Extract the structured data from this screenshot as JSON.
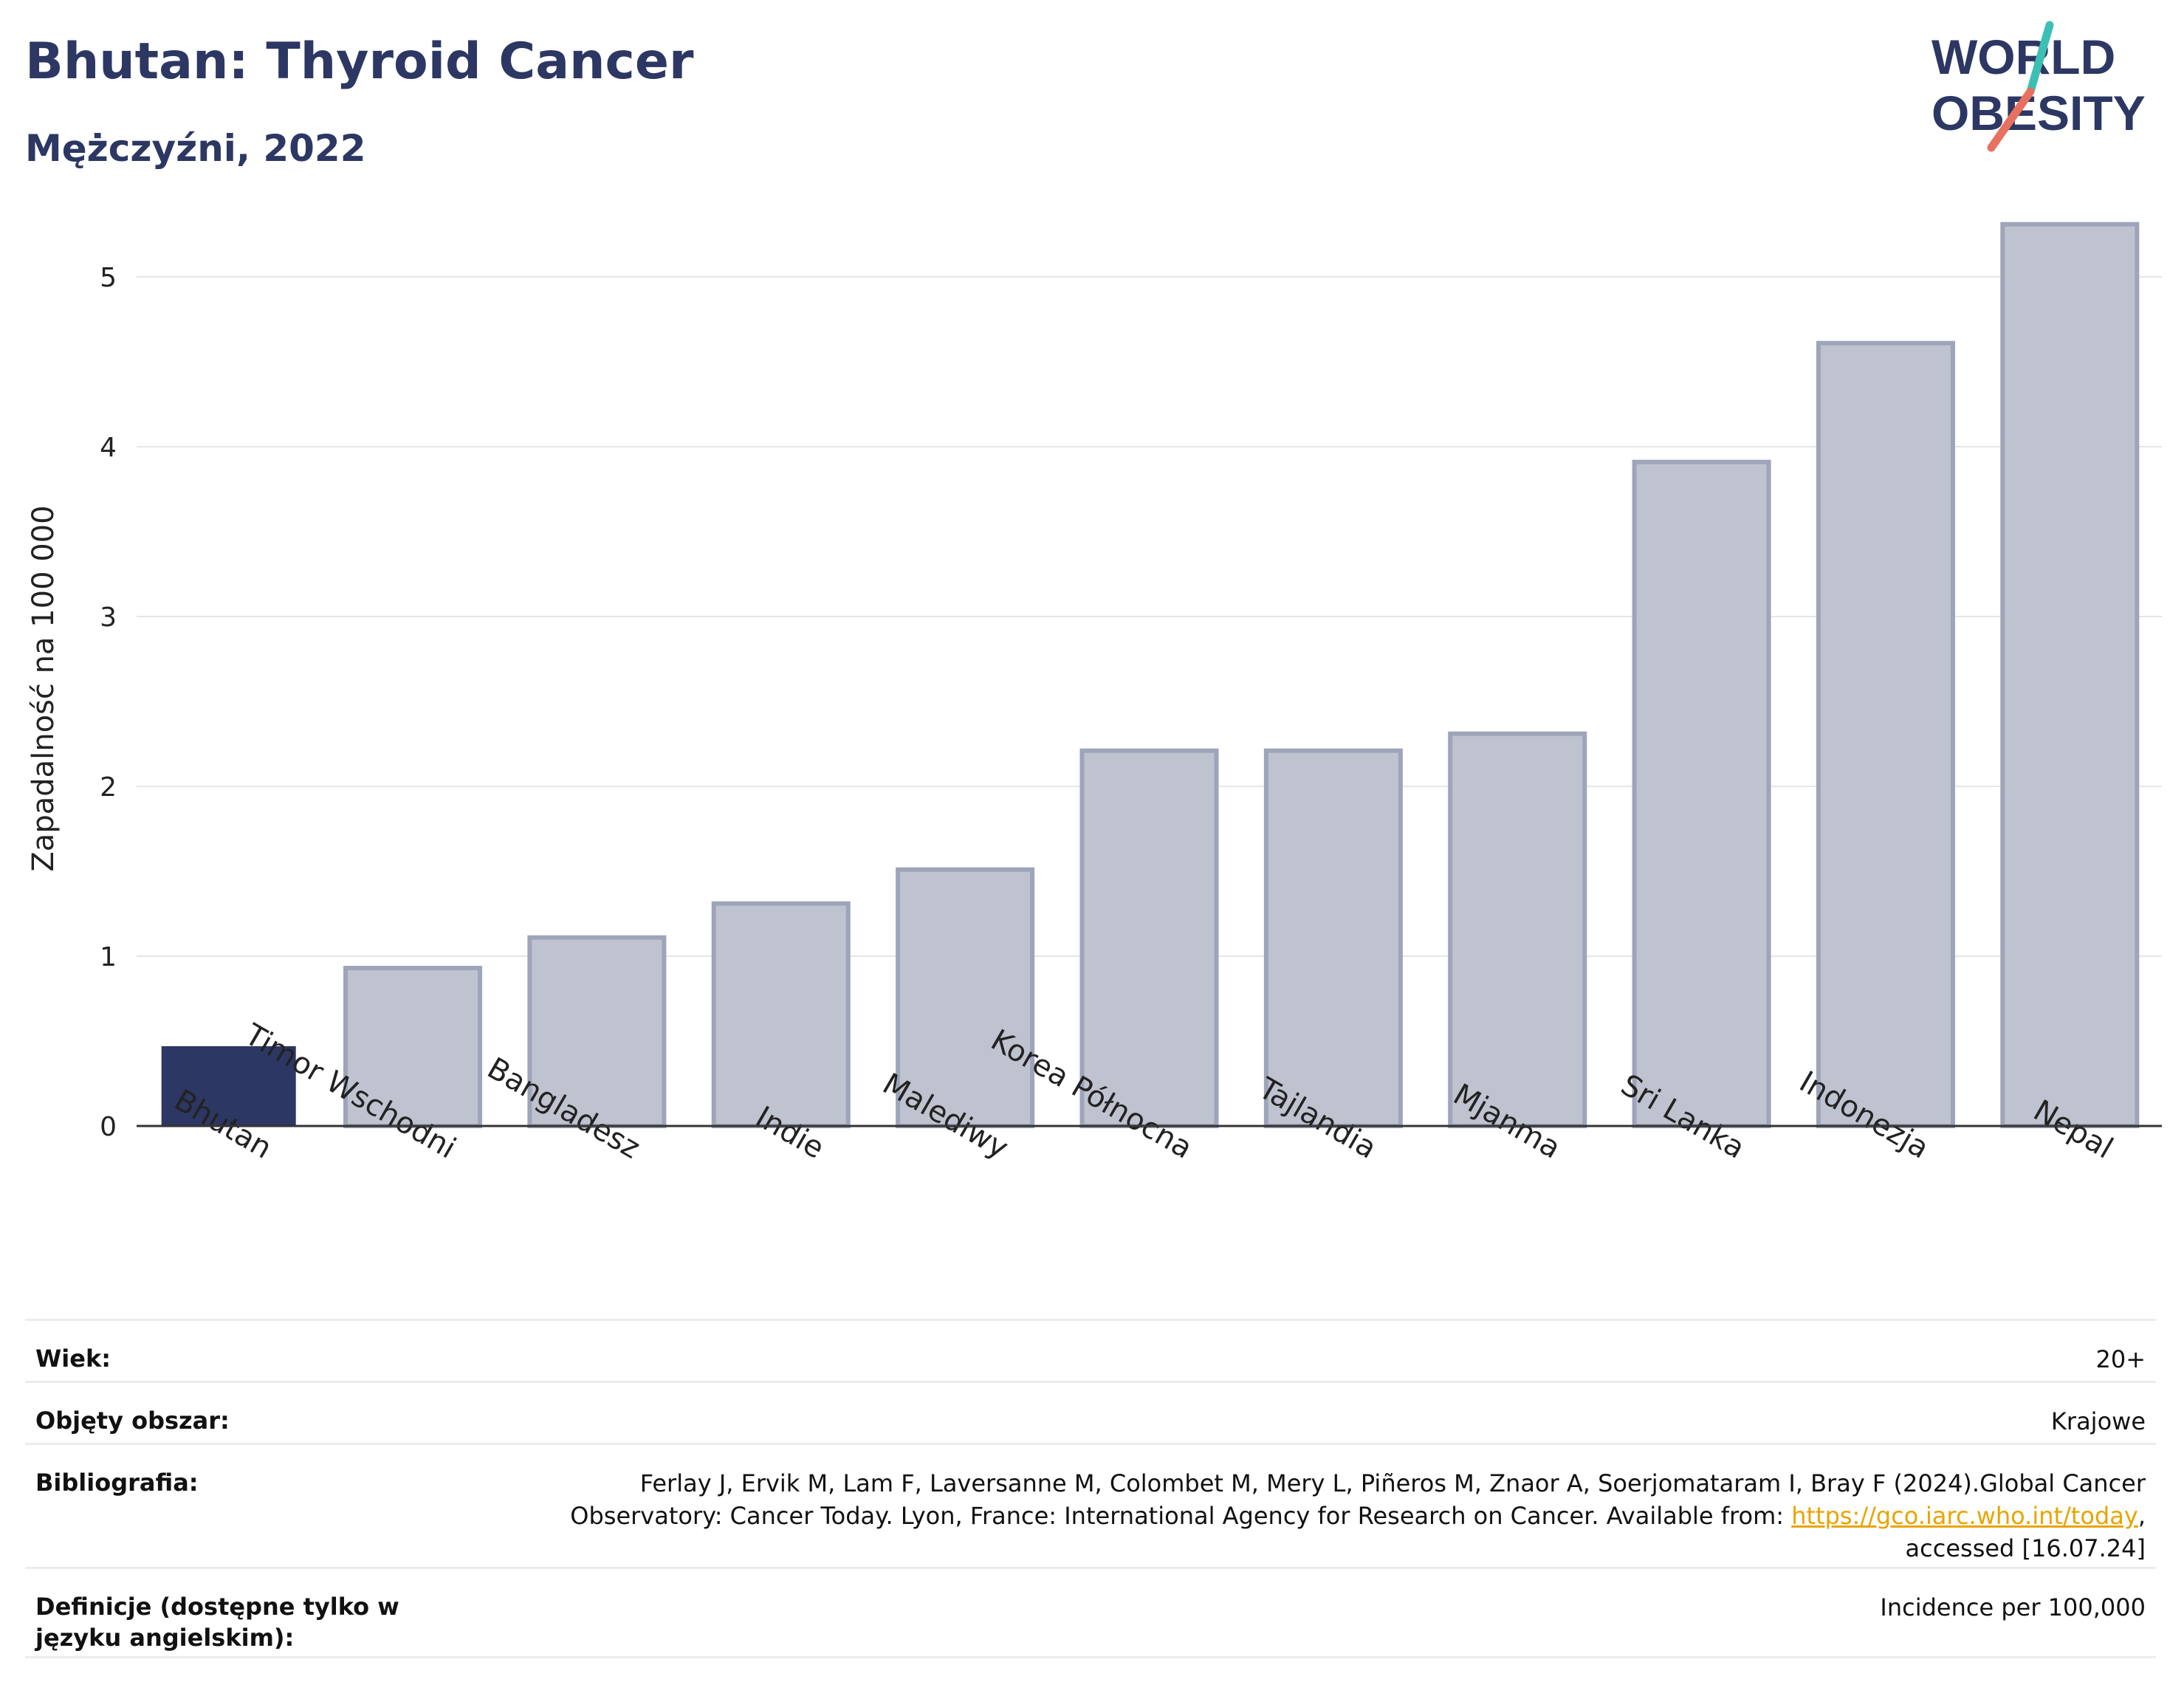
{
  "header": {
    "title": "Bhutan: Thyroid Cancer",
    "subtitle": "Mężczyźni, 2022"
  },
  "logo": {
    "line1": "WORLD",
    "line2": "OBESITY",
    "text_color": "#2c3763",
    "slash_colors": [
      "#3cbfb4",
      "#e8705f"
    ]
  },
  "chart_data": {
    "type": "bar",
    "title": "Bhutan: Thyroid Cancer",
    "subtitle": "Mężczyźni, 2022",
    "ylabel": "Zapadalność na 100 000",
    "xlabel": "",
    "ylim": [
      0,
      5.5
    ],
    "yticks": [
      0,
      1,
      2,
      3,
      4,
      5
    ],
    "grid": true,
    "categories": [
      "Bhutan",
      "Timor Wschodni",
      "Bangladesz",
      "Indie",
      "Malediwy",
      "Korea Północna",
      "Tajlandia",
      "Mjanma",
      "Sri Lanka",
      "Indonezja",
      "Nepal"
    ],
    "values": [
      0.47,
      0.93,
      1.11,
      1.31,
      1.51,
      2.21,
      2.21,
      2.31,
      3.91,
      4.61,
      5.31
    ],
    "highlight_index": 0,
    "colors": {
      "highlight": "#2c3763",
      "bar_fill": "#bfc3cf",
      "bar_stroke": "#9ea4ba"
    }
  },
  "meta": {
    "age_label": "Wiek:",
    "age_value": "20+",
    "coverage_label": "Objęty obszar:",
    "coverage_value": "Krajowe",
    "bib_label": "Bibliografia:",
    "bib_text_1": "Ferlay J, Ervik M, Lam F, Laversanne M, Colombet M, Mery L, Piñeros M, Znaor A, Soerjomataram I, Bray F (2024).Global Cancer Observatory: Cancer Today. Lyon, France: International Agency for Research on Cancer. Available from: ",
    "bib_link": "https://gco.iarc.who.int/today",
    "bib_text_2": ", accessed [16.07.24]",
    "def_label": "Definicje (dostępne tylko w języku angielskim):",
    "def_value": "Incidence per 100,000"
  }
}
